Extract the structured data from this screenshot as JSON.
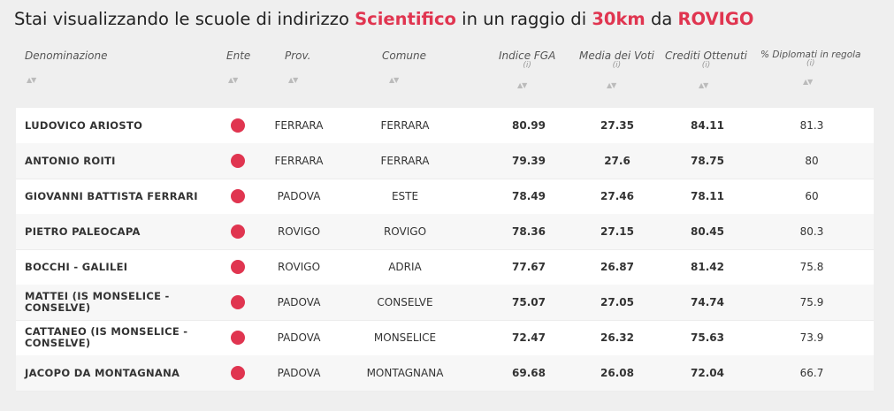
{
  "title": {
    "prefix": "Stai visualizzando le scuole di indirizzo ",
    "indirizzo": "Scientifico",
    "middle": " in un raggio di ",
    "raggio": "30km",
    "da": " da ",
    "citta": "ROVIGO"
  },
  "headers": {
    "denominazione": "Denominazione",
    "ente": "Ente",
    "prov": "Prov.",
    "comune": "Comune",
    "fga": "Indice FGA",
    "media": "Media dei Voti",
    "crediti": "Crediti Ottenuti",
    "diplomati": "% Diplomati in regola",
    "info": "(i)",
    "sort": "▲▼"
  },
  "colors": {
    "accent": "#e03550"
  },
  "rows": [
    {
      "name": "LUDOVICO ARIOSTO",
      "prov": "FERRARA",
      "comune": "FERRARA",
      "fga": "80.99",
      "media": "27.35",
      "crediti": "84.11",
      "diplomati": "81.3"
    },
    {
      "name": "ANTONIO ROITI",
      "prov": "FERRARA",
      "comune": "FERRARA",
      "fga": "79.39",
      "media": "27.6",
      "crediti": "78.75",
      "diplomati": "80"
    },
    {
      "name": "GIOVANNI BATTISTA FERRARI",
      "prov": "PADOVA",
      "comune": "ESTE",
      "fga": "78.49",
      "media": "27.46",
      "crediti": "78.11",
      "diplomati": "60"
    },
    {
      "name": "PIETRO PALEOCAPA",
      "prov": "ROVIGO",
      "comune": "ROVIGO",
      "fga": "78.36",
      "media": "27.15",
      "crediti": "80.45",
      "diplomati": "80.3"
    },
    {
      "name": "BOCCHI - GALILEI",
      "prov": "ROVIGO",
      "comune": "ADRIA",
      "fga": "77.67",
      "media": "26.87",
      "crediti": "81.42",
      "diplomati": "75.8"
    },
    {
      "name": "MATTEI (IS MONSELICE - CONSELVE)",
      "prov": "PADOVA",
      "comune": "CONSELVE",
      "fga": "75.07",
      "media": "27.05",
      "crediti": "74.74",
      "diplomati": "75.9"
    },
    {
      "name": "CATTANEO (IS MONSELICE - CONSELVE)",
      "prov": "PADOVA",
      "comune": "MONSELICE",
      "fga": "72.47",
      "media": "26.32",
      "crediti": "75.63",
      "diplomati": "73.9"
    },
    {
      "name": "JACOPO DA MONTAGNANA",
      "prov": "PADOVA",
      "comune": "MONTAGNANA",
      "fga": "69.68",
      "media": "26.08",
      "crediti": "72.04",
      "diplomati": "66.7"
    }
  ]
}
